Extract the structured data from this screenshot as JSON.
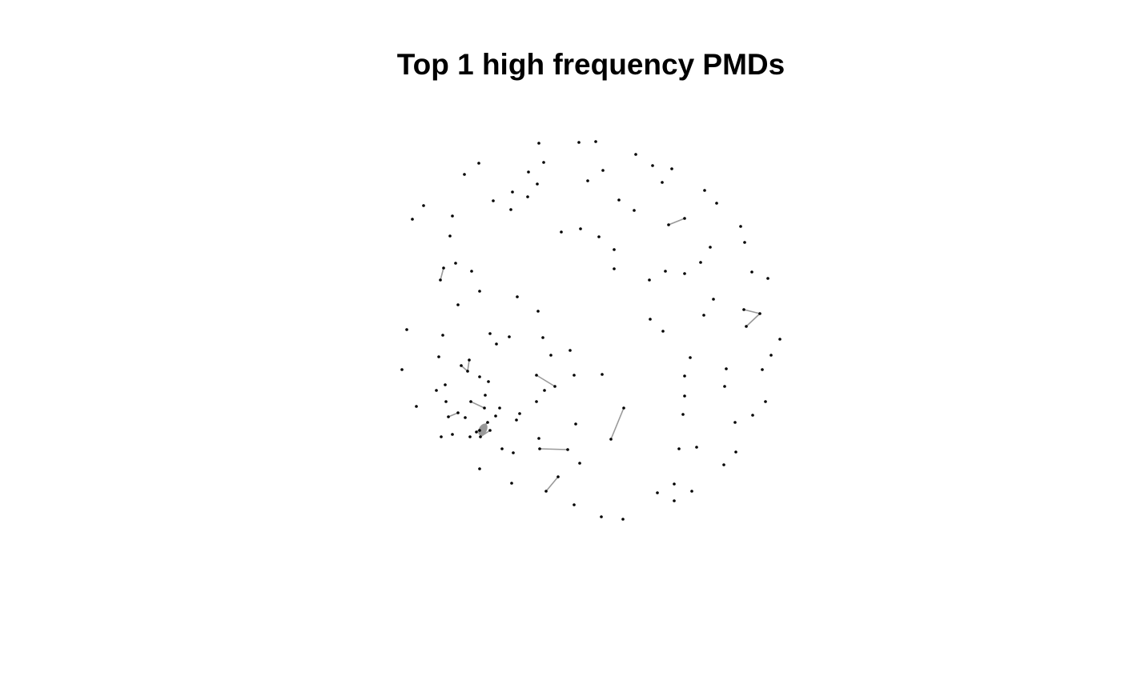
{
  "title": "Top 1 high frequency PMDs",
  "colors": {
    "background": "#ffffff",
    "node": "#000000",
    "edge": "#999999",
    "title": "#000000"
  }
}
